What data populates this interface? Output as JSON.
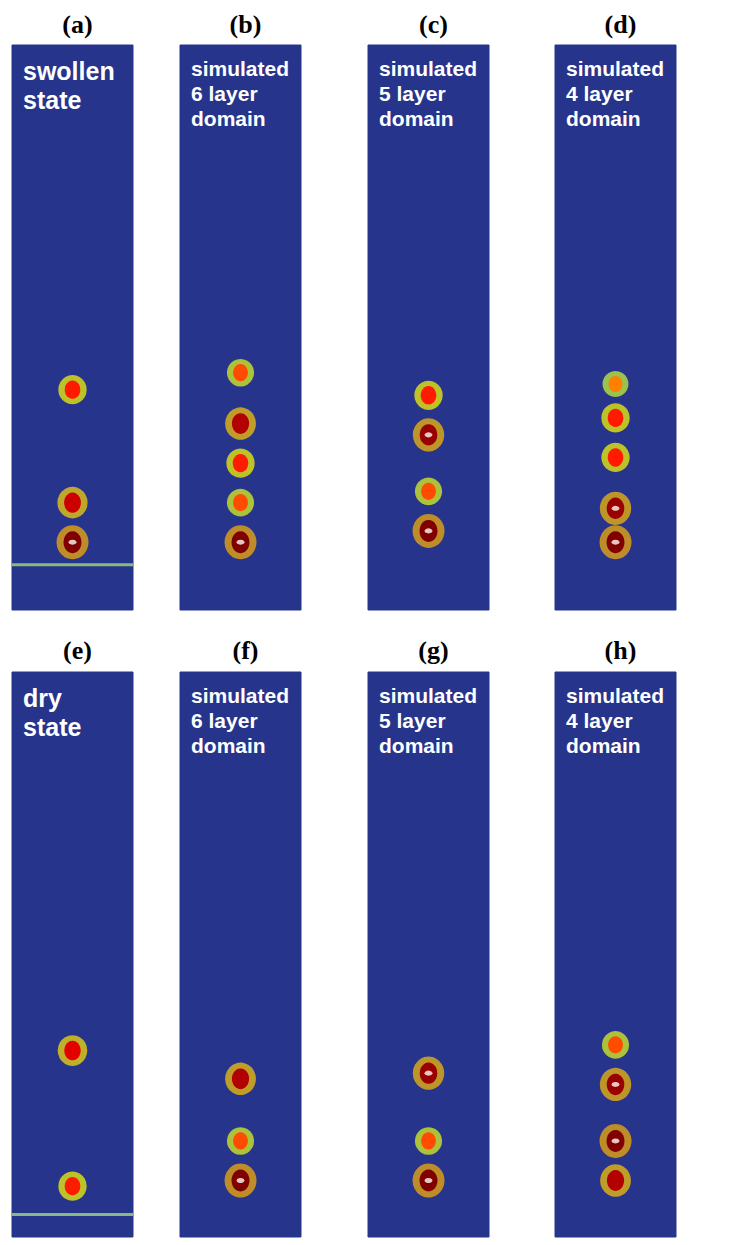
{
  "chart_data": [
    {
      "type": "scatter",
      "panel": "(a)",
      "title": "swollen state",
      "xlim": [
        0,
        1
      ],
      "ylim": [
        0,
        1
      ],
      "tick_labels": false,
      "grid": false,
      "x": [
        0.5,
        0.5,
        0.5
      ],
      "values": [
        0.12,
        0.19,
        0.39
      ],
      "intensity": [
        1.0,
        0.85,
        0.7
      ],
      "rod": 0.12,
      "horizon": 0.08
    },
    {
      "type": "scatter",
      "panel": "(b)",
      "title": "simulated 6 layer domain",
      "xlim": [
        0,
        1
      ],
      "ylim": [
        0,
        1
      ],
      "tick_labels": false,
      "grid": false,
      "x": [
        0.5,
        0.5,
        0.5,
        0.5,
        0.5
      ],
      "values": [
        0.12,
        0.19,
        0.26,
        0.33,
        0.42
      ],
      "intensity": [
        1.0,
        0.6,
        0.7,
        0.9,
        0.6
      ],
      "rod": 0.12
    },
    {
      "type": "scatter",
      "panel": "(c)",
      "title": "simulated 5 layer domain",
      "xlim": [
        0,
        1
      ],
      "ylim": [
        0,
        1
      ],
      "tick_labels": false,
      "grid": false,
      "x": [
        0.5,
        0.5,
        0.5,
        0.5
      ],
      "values": [
        0.14,
        0.21,
        0.31,
        0.38
      ],
      "intensity": [
        1.0,
        0.6,
        0.95,
        0.7
      ],
      "rod": 0.14
    },
    {
      "type": "scatter",
      "panel": "(d)",
      "title": "simulated 4 layer domain",
      "xlim": [
        0,
        1
      ],
      "ylim": [
        0,
        1
      ],
      "tick_labels": false,
      "grid": false,
      "x": [
        0.5,
        0.5,
        0.5,
        0.5,
        0.5
      ],
      "values": [
        0.12,
        0.18,
        0.27,
        0.34,
        0.4
      ],
      "intensity": [
        1.0,
        0.95,
        0.7,
        0.7,
        0.5
      ],
      "rod": 0.12
    },
    {
      "type": "scatter",
      "panel": "(e)",
      "title": "dry state",
      "xlim": [
        0,
        1
      ],
      "ylim": [
        0,
        1
      ],
      "tick_labels": false,
      "grid": false,
      "x": [
        0.5,
        0.5
      ],
      "values": [
        0.09,
        0.33
      ],
      "intensity": [
        0.7,
        0.8
      ],
      "rod": 0.09,
      "horizon": 0.04
    },
    {
      "type": "scatter",
      "panel": "(f)",
      "title": "simulated 6 layer domain",
      "xlim": [
        0,
        1
      ],
      "ylim": [
        0,
        1
      ],
      "tick_labels": false,
      "grid": false,
      "x": [
        0.5,
        0.5,
        0.5
      ],
      "values": [
        0.1,
        0.17,
        0.28
      ],
      "intensity": [
        1.0,
        0.6,
        0.9
      ],
      "rod": 0.1
    },
    {
      "type": "scatter",
      "panel": "(g)",
      "title": "simulated 5 layer domain",
      "xlim": [
        0,
        1
      ],
      "ylim": [
        0,
        1
      ],
      "tick_labels": false,
      "grid": false,
      "x": [
        0.5,
        0.5,
        0.5
      ],
      "values": [
        0.1,
        0.17,
        0.29
      ],
      "intensity": [
        1.0,
        0.6,
        0.95
      ],
      "rod": 0.1
    },
    {
      "type": "scatter",
      "panel": "(h)",
      "title": "simulated 4 layer domain",
      "xlim": [
        0,
        1
      ],
      "ylim": [
        0,
        1
      ],
      "tick_labels": false,
      "grid": false,
      "x": [
        0.5,
        0.5,
        0.5,
        0.5
      ],
      "values": [
        0.1,
        0.17,
        0.27,
        0.34
      ],
      "intensity": [
        0.9,
        1.0,
        0.95,
        0.6
      ],
      "rod": 0.1
    }
  ]
}
